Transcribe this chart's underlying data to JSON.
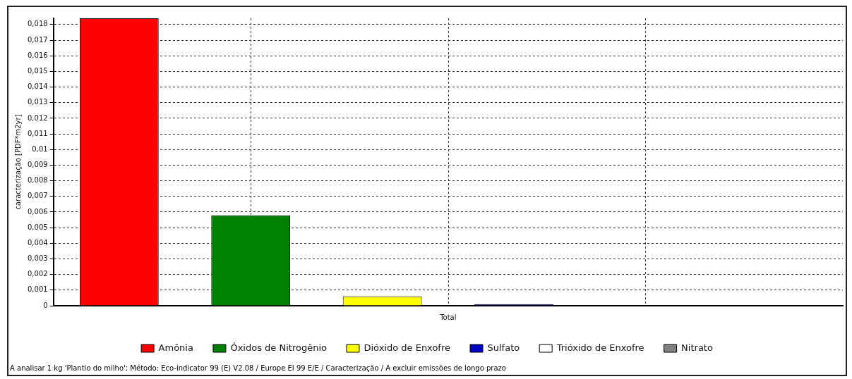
{
  "chart_data": {
    "type": "bar",
    "ylabel": "caracterização [PDF*m2yr]",
    "categories": [
      "Total"
    ],
    "series": [
      {
        "name": "Amônia",
        "color": "#ff0000",
        "values": [
          0.0184
        ]
      },
      {
        "name": "Óxidos de Nitrogênio",
        "color": "#008000",
        "values": [
          0.0058
        ]
      },
      {
        "name": "Dióxido de Enxofre",
        "color": "#ffff00",
        "values": [
          0.0006
        ]
      },
      {
        "name": "Sulfato",
        "color": "#0000c0",
        "values": [
          0.0001
        ]
      },
      {
        "name": "Trióxido de Enxofre",
        "color": "#ffffff",
        "values": [
          0
        ]
      },
      {
        "name": "Nitrato",
        "color": "#808080",
        "values": [
          0
        ]
      }
    ],
    "ylim": [
      0,
      0.0184
    ],
    "yticks": [
      0,
      {
        "value": 0.001,
        "label": "0,001"
      },
      {
        "value": 0.002,
        "label": "0,002"
      },
      {
        "value": 0.003,
        "label": "0,003"
      },
      {
        "value": 0.004,
        "label": "0,004"
      },
      {
        "value": 0.005,
        "label": "0,005"
      },
      {
        "value": 0.006,
        "label": "0,006"
      },
      {
        "value": 0.007,
        "label": "0,007"
      },
      {
        "value": 0.008,
        "label": "0,008"
      },
      {
        "value": 0.009,
        "label": "0,009"
      },
      {
        "value": 0.01,
        "label": "0,01"
      },
      {
        "value": 0.011,
        "label": "0,011"
      },
      {
        "value": 0.012,
        "label": "0,012"
      },
      {
        "value": 0.013,
        "label": "0,013"
      },
      {
        "value": 0.014,
        "label": "0,014"
      },
      {
        "value": 0.015,
        "label": "0,015"
      },
      {
        "value": 0.016,
        "label": "0,016"
      },
      {
        "value": 0.017,
        "label": "0,017"
      },
      {
        "value": 0.018,
        "label": "0,018"
      }
    ],
    "grid": true,
    "legend": "bottom",
    "annotations": [
      "A analisar 1 kg 'Plantio do milho';  Método: Eco-indicator 99 (E) V2.08 /  Europe EI 99 E/E / Caracterização / A excluir emissões de longo prazo"
    ]
  }
}
